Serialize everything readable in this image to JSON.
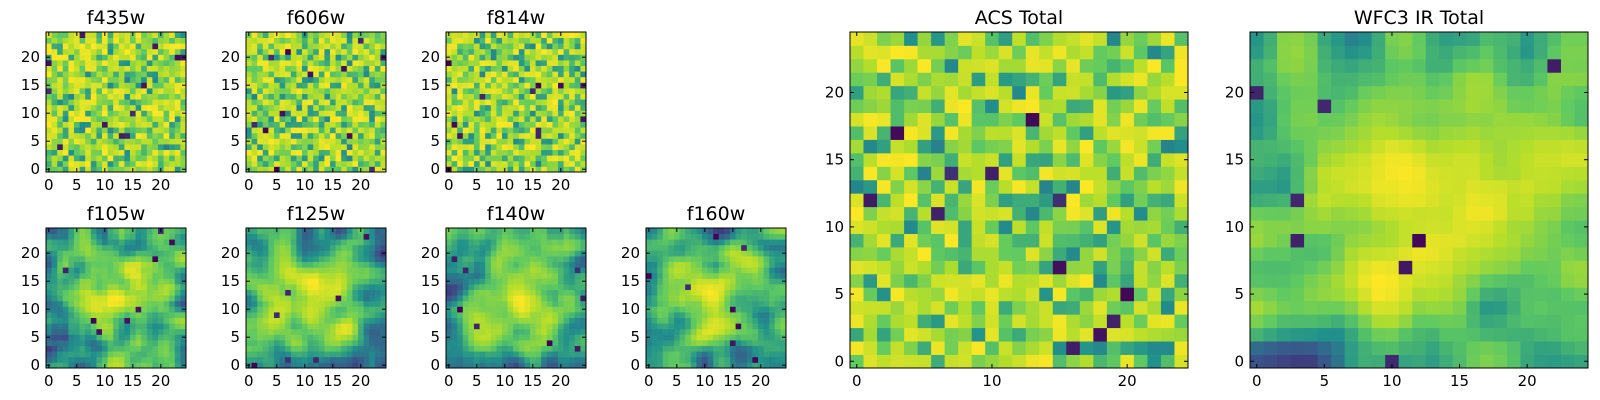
{
  "chart_data": [
    {
      "type": "heatmap",
      "title": "f435w",
      "xticks": [
        "0",
        "5",
        "10",
        "15",
        "20"
      ],
      "yticks": [
        "0",
        "5",
        "10",
        "15",
        "20"
      ],
      "xlim": [
        0,
        24
      ],
      "ylim": [
        0,
        24
      ],
      "grid_size": 25,
      "seed": 11,
      "pattern": "noise",
      "colormap": "viridis"
    },
    {
      "type": "heatmap",
      "title": "f606w",
      "xticks": [
        "0",
        "5",
        "10",
        "15",
        "20"
      ],
      "yticks": [
        "0",
        "5",
        "10",
        "15",
        "20"
      ],
      "xlim": [
        0,
        24
      ],
      "ylim": [
        0,
        24
      ],
      "grid_size": 25,
      "seed": 23,
      "pattern": "noise",
      "colormap": "viridis"
    },
    {
      "type": "heatmap",
      "title": "f814w",
      "xticks": [
        "0",
        "5",
        "10",
        "15",
        "20"
      ],
      "yticks": [
        "0",
        "5",
        "10",
        "15",
        "20"
      ],
      "xlim": [
        0,
        24
      ],
      "ylim": [
        0,
        24
      ],
      "grid_size": 25,
      "seed": 37,
      "pattern": "noise",
      "colormap": "viridis"
    },
    {
      "type": "heatmap",
      "title": "f105w",
      "xticks": [
        "0",
        "5",
        "10",
        "15",
        "20"
      ],
      "yticks": [
        "0",
        "5",
        "10",
        "15",
        "20"
      ],
      "xlim": [
        0,
        24
      ],
      "ylim": [
        0,
        24
      ],
      "grid_size": 25,
      "seed": 41,
      "pattern": "smooth",
      "colormap": "viridis"
    },
    {
      "type": "heatmap",
      "title": "f125w",
      "xticks": [
        "0",
        "5",
        "10",
        "15",
        "20"
      ],
      "yticks": [
        "0",
        "5",
        "10",
        "15",
        "20"
      ],
      "xlim": [
        0,
        24
      ],
      "ylim": [
        0,
        24
      ],
      "grid_size": 25,
      "seed": 53,
      "pattern": "smooth",
      "colormap": "viridis"
    },
    {
      "type": "heatmap",
      "title": "f140w",
      "xticks": [
        "0",
        "5",
        "10",
        "15",
        "20"
      ],
      "yticks": [
        "0",
        "5",
        "10",
        "15",
        "20"
      ],
      "xlim": [
        0,
        24
      ],
      "ylim": [
        0,
        24
      ],
      "grid_size": 25,
      "seed": 67,
      "pattern": "smooth",
      "colormap": "viridis"
    },
    {
      "type": "heatmap",
      "title": "f160w",
      "xticks": [
        "0",
        "5",
        "10",
        "15",
        "20"
      ],
      "yticks": [
        "0",
        "5",
        "10",
        "15",
        "20"
      ],
      "xlim": [
        0,
        24
      ],
      "ylim": [
        0,
        24
      ],
      "grid_size": 25,
      "seed": 71,
      "pattern": "smooth",
      "colormap": "viridis"
    },
    {
      "type": "heatmap",
      "title": "ACS Total",
      "xticks": [
        "0",
        "10",
        "20"
      ],
      "yticks": [
        "0",
        "5",
        "10",
        "15",
        "20"
      ],
      "xlim": [
        0,
        24
      ],
      "ylim": [
        0,
        24
      ],
      "grid_size": 25,
      "seed": 83,
      "pattern": "noise",
      "colormap": "viridis"
    },
    {
      "type": "heatmap",
      "title": "WFC3 IR Total",
      "xticks": [
        "0",
        "5",
        "10",
        "15",
        "20"
      ],
      "yticks": [
        "0",
        "5",
        "10",
        "15",
        "20"
      ],
      "xlim": [
        0,
        24
      ],
      "ylim": [
        0,
        24
      ],
      "grid_size": 25,
      "seed": 97,
      "pattern": "smooth",
      "colormap": "viridis"
    }
  ],
  "colors": {
    "viridis_stops": [
      "#440154",
      "#3b528b",
      "#21918c",
      "#5ec962",
      "#b5de2b",
      "#fde725"
    ],
    "axis": "#000000",
    "background": "#ffffff"
  }
}
